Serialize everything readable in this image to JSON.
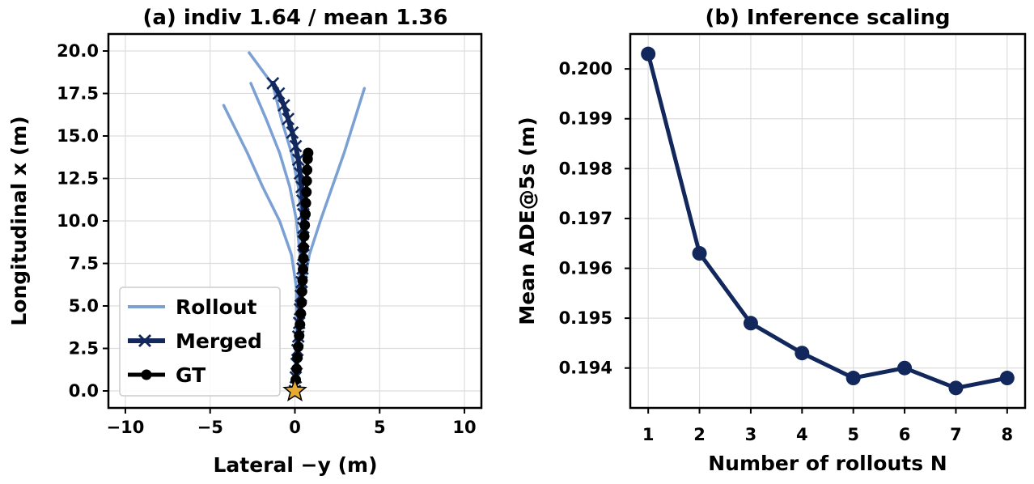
{
  "chart_data": [
    {
      "type": "line",
      "title": "(a) indiv 1.64 / mean 1.36",
      "xlabel": "Lateral −y (m)",
      "ylabel": "Longitudinal x (m)",
      "xlim": [
        -11,
        11
      ],
      "ylim": [
        -1,
        21
      ],
      "xticks": [
        -10,
        -5,
        0,
        5,
        10
      ],
      "xtick_labels": [
        "−10",
        "−5",
        "0",
        "5",
        "10"
      ],
      "yticks": [
        0,
        2.5,
        5,
        7.5,
        10,
        12.5,
        15,
        17.5,
        20
      ],
      "ytick_labels": [
        "0.0",
        "2.5",
        "5.0",
        "7.5",
        "10.0",
        "12.5",
        "15.0",
        "17.5",
        "20.0"
      ],
      "grid": true,
      "legend": {
        "position": "lower-left",
        "entries": [
          {
            "label": "Rollout",
            "color": "#7aa0d4",
            "marker": "none"
          },
          {
            "label": "Merged",
            "color": "#12285c",
            "marker": "x"
          },
          {
            "label": "GT",
            "color": "#000000",
            "marker": "o"
          }
        ]
      },
      "series": [
        {
          "name": "Rollout",
          "color": "#7aa0d4",
          "points": [
            [
              0,
              0
            ],
            [
              0.05,
              2
            ],
            [
              0.1,
              4
            ],
            [
              0.1,
              6
            ],
            [
              -0.2,
              8
            ],
            [
              -0.9,
              10
            ],
            [
              -1.9,
              12
            ],
            [
              -2.8,
              14
            ],
            [
              -4.2,
              16.8
            ]
          ]
        },
        {
          "name": "Rollout",
          "color": "#7aa0d4",
          "points": [
            [
              0,
              0
            ],
            [
              0.15,
              2
            ],
            [
              0.3,
              4
            ],
            [
              0.5,
              6
            ],
            [
              0.85,
              8
            ],
            [
              1.5,
              10
            ],
            [
              2.2,
              12
            ],
            [
              2.9,
              14
            ],
            [
              4.1,
              17.8
            ]
          ]
        },
        {
          "name": "Rollout",
          "color": "#7aa0d4",
          "points": [
            [
              0,
              0
            ],
            [
              0.1,
              2
            ],
            [
              0.2,
              4
            ],
            [
              0.25,
              6
            ],
            [
              0.3,
              8
            ],
            [
              0.1,
              10
            ],
            [
              -0.3,
              12
            ],
            [
              -0.9,
              14
            ],
            [
              -1.7,
              16
            ],
            [
              -2.6,
              18.1
            ]
          ]
        },
        {
          "name": "Rollout",
          "color": "#7aa0d4",
          "points": [
            [
              0,
              0
            ],
            [
              0.1,
              2
            ],
            [
              0.2,
              4
            ],
            [
              0.3,
              6
            ],
            [
              0.4,
              8
            ],
            [
              0.4,
              10
            ],
            [
              0.2,
              12
            ],
            [
              -0.2,
              14
            ],
            [
              -0.8,
              16
            ],
            [
              -1.3,
              18
            ],
            [
              -2.7,
              19.9
            ]
          ]
        },
        {
          "name": "Merged",
          "color": "#12285c",
          "points": [
            [
              0,
              0
            ],
            [
              0.05,
              0.8
            ],
            [
              0.1,
              1.6
            ],
            [
              0.15,
              2.4
            ],
            [
              0.2,
              3.2
            ],
            [
              0.25,
              4
            ],
            [
              0.3,
              4.8
            ],
            [
              0.35,
              5.6
            ],
            [
              0.4,
              6.4
            ],
            [
              0.45,
              7.2
            ],
            [
              0.5,
              8
            ],
            [
              0.5,
              8.8
            ],
            [
              0.5,
              9.6
            ],
            [
              0.5,
              10.4
            ],
            [
              0.45,
              11.2
            ],
            [
              0.4,
              12
            ],
            [
              0.3,
              12.8
            ],
            [
              0.2,
              13.6
            ],
            [
              0.05,
              14.4
            ],
            [
              -0.15,
              15.2
            ],
            [
              -0.4,
              16
            ],
            [
              -0.65,
              16.8
            ],
            [
              -0.95,
              17.5
            ],
            [
              -1.3,
              18.1
            ]
          ]
        },
        {
          "name": "GT",
          "color": "#000000",
          "points": [
            [
              0,
              0
            ],
            [
              0.05,
              0.65
            ],
            [
              0.1,
              1.3
            ],
            [
              0.15,
              1.95
            ],
            [
              0.2,
              2.6
            ],
            [
              0.25,
              3.25
            ],
            [
              0.3,
              3.9
            ],
            [
              0.35,
              4.55
            ],
            [
              0.4,
              5.2
            ],
            [
              0.42,
              5.85
            ],
            [
              0.45,
              6.5
            ],
            [
              0.48,
              7.15
            ],
            [
              0.5,
              7.8
            ],
            [
              0.52,
              8.45
            ],
            [
              0.55,
              9.1
            ],
            [
              0.58,
              9.75
            ],
            [
              0.62,
              10.4
            ],
            [
              0.65,
              11.05
            ],
            [
              0.68,
              11.7
            ],
            [
              0.7,
              12.35
            ],
            [
              0.72,
              13
            ],
            [
              0.75,
              13.65
            ],
            [
              0.78,
              14
            ]
          ]
        }
      ],
      "start_marker": {
        "point": [
          0,
          0
        ],
        "color": "#e8a930",
        "shape": "star"
      }
    },
    {
      "type": "line",
      "title": "(b) Inference scaling",
      "xlabel": "Number of rollouts N",
      "ylabel": "Mean ADE@5s (m)",
      "xlim": [
        0.65,
        8.35
      ],
      "ylim": [
        0.1932,
        0.2007
      ],
      "xticks": [
        1,
        2,
        3,
        4,
        5,
        6,
        7,
        8
      ],
      "xtick_labels": [
        "1",
        "2",
        "3",
        "4",
        "5",
        "6",
        "7",
        "8"
      ],
      "yticks": [
        0.194,
        0.195,
        0.196,
        0.197,
        0.198,
        0.199,
        0.2
      ],
      "ytick_labels": [
        "0.194",
        "0.195",
        "0.196",
        "0.197",
        "0.198",
        "0.199",
        "0.200"
      ],
      "grid": true,
      "series": [
        {
          "color": "#12285c",
          "x": [
            1,
            2,
            3,
            4,
            5,
            6,
            7,
            8
          ],
          "values": [
            0.2003,
            0.1963,
            0.1949,
            0.1943,
            0.1938,
            0.194,
            0.1936,
            0.1938
          ]
        }
      ]
    }
  ]
}
